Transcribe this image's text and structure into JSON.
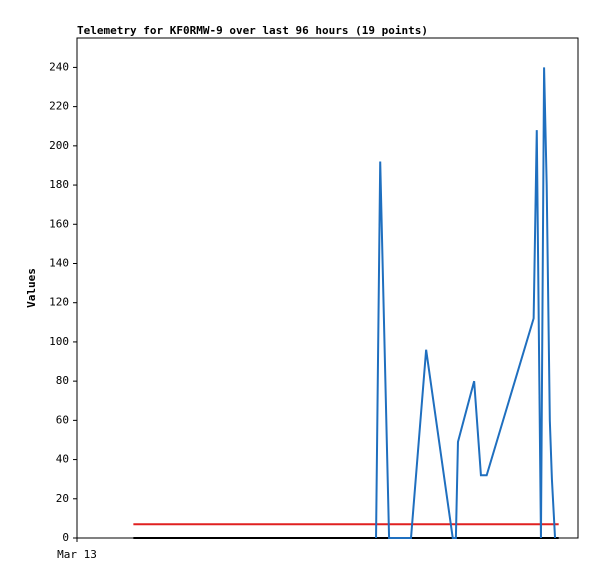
{
  "chart_data": {
    "type": "line",
    "title": "Telemetry for KF0RMW-9 over last 96 hours (19 points)",
    "y_label": "Values",
    "xlim": [
      0,
      96
    ],
    "xticks": [
      {
        "value": 0,
        "label": "Mar 13"
      }
    ],
    "ylim": [
      0,
      255
    ],
    "yticks": [
      0,
      20,
      40,
      60,
      80,
      100,
      120,
      140,
      160,
      180,
      200,
      220,
      240
    ],
    "series": [
      {
        "color": "#000000",
        "x": [
          10.8,
          92.3
        ],
        "values": [
          0,
          0
        ]
      },
      {
        "color": "#e02020",
        "x": [
          10.8,
          92.3
        ],
        "values": [
          7,
          7
        ]
      },
      {
        "color": "#1f6fbf",
        "x": [
          57.3,
          58.1,
          59.8,
          64.0,
          66.9,
          72.0,
          72.6,
          73.0,
          76.1,
          77.4,
          78.5,
          87.5,
          88.1,
          88.9,
          89.5,
          90.0,
          90.6,
          91.0,
          91.6
        ],
        "values": [
          0,
          192,
          0,
          0,
          96,
          0,
          0,
          49,
          80,
          32,
          32,
          112,
          208,
          0,
          240,
          180,
          60,
          30,
          0
        ]
      }
    ]
  }
}
